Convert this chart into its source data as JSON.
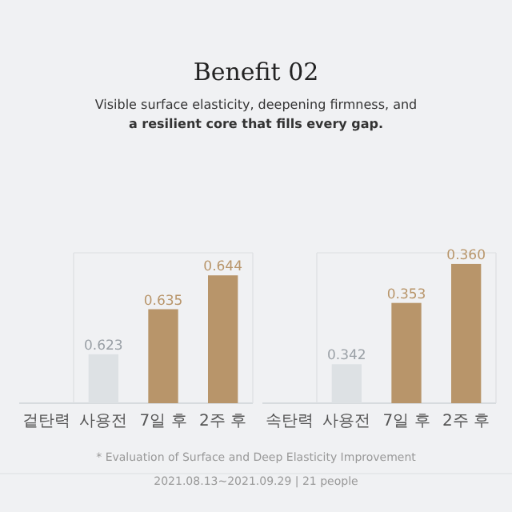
{
  "chart_data": [
    {
      "type": "bar",
      "title": "Benefit 02",
      "subtitle": "Visible surface elasticity, deepening firmness, and **a resilient core that fills every gap.**",
      "xlabel": "겉탄력",
      "categories": [
        "사용전",
        "7일 후",
        "2주 후"
      ],
      "values": [
        0.623,
        0.635,
        0.644
      ],
      "colors": [
        "#dde1e4",
        "#b8956a",
        "#b8956a"
      ],
      "ylim": [
        0.61,
        0.65
      ],
      "data_labels": true,
      "tick_labels": "x"
    },
    {
      "type": "bar",
      "xlabel": "속탄력",
      "categories": [
        "사용전",
        "7일 후",
        "2주 후"
      ],
      "values": [
        0.342,
        0.353,
        0.36
      ],
      "value_labels": [
        "0.342",
        "0.353",
        "0.360"
      ],
      "colors": [
        "#dde1e4",
        "#b8956a",
        "#b8956a"
      ],
      "ylim": [
        0.335,
        0.362
      ],
      "tick_labels": "x",
      "annotations": [
        "* Evaluation of Surface and Deep Elasticity Improvement",
        "2021.08.13~2021.09.29 | 21 people"
      ]
    }
  ]
}
